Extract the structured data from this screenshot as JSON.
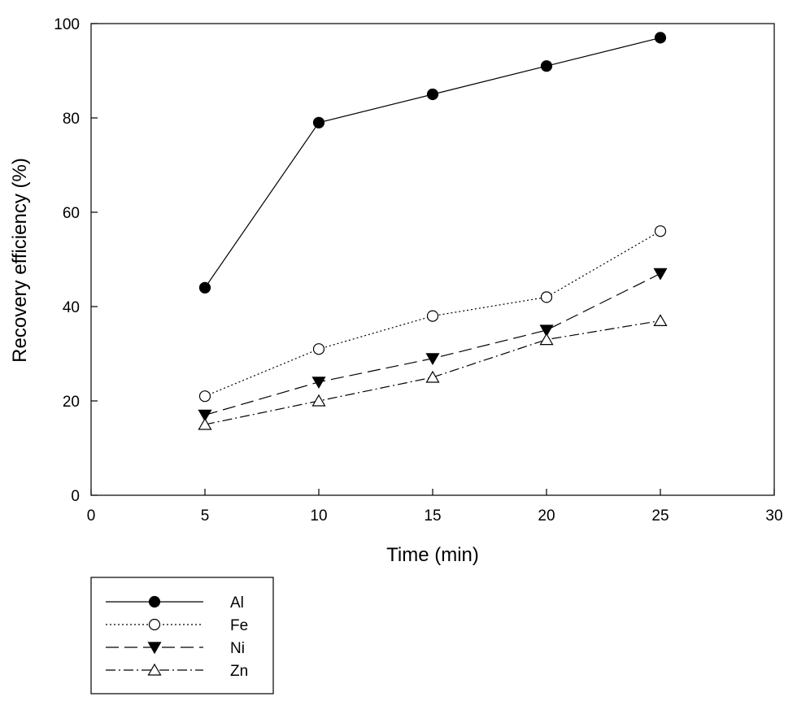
{
  "chart_data": {
    "type": "line",
    "title": "",
    "xlabel": "Time (min)",
    "ylabel": "Recovery efficiency (%)",
    "xlim": [
      0,
      30
    ],
    "ylim": [
      0,
      100
    ],
    "xticks": [
      0,
      5,
      10,
      15,
      20,
      25,
      30
    ],
    "yticks": [
      0,
      20,
      40,
      60,
      80,
      100
    ],
    "grid": false,
    "legend_position": "bottom-left, below plot",
    "x": [
      5,
      10,
      15,
      20,
      25
    ],
    "series": [
      {
        "name": "Al",
        "values": [
          44,
          79,
          85,
          91,
          97
        ],
        "marker": "filled-circle",
        "line_style": "solid",
        "color": "#000000"
      },
      {
        "name": "Fe",
        "values": [
          21,
          31,
          38,
          42,
          56
        ],
        "marker": "open-circle",
        "line_style": "dotted",
        "color": "#000000"
      },
      {
        "name": "Ni",
        "values": [
          17,
          24,
          29,
          35,
          47
        ],
        "marker": "filled-down-triangle",
        "line_style": "dashed",
        "color": "#000000"
      },
      {
        "name": "Zn",
        "values": [
          15,
          20,
          25,
          33,
          37
        ],
        "marker": "open-up-triangle",
        "line_style": "dash-dot",
        "color": "#000000"
      }
    ]
  }
}
